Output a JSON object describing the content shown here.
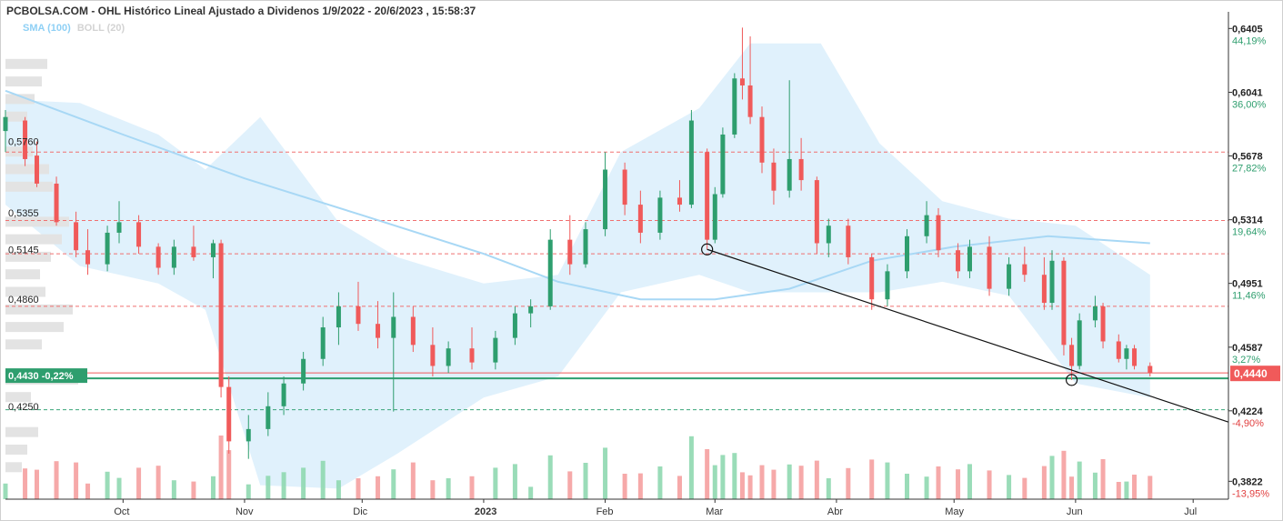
{
  "title": "PCBOLSA.COM - OHL Histórico Lineal Ajustado a Dividenos 1/9/2022 - 20/6/2023 , 15:58:37",
  "legend": {
    "sma": "SMA (100)",
    "boll": "BOLL (20)"
  },
  "colors": {
    "up": "#2e9e6e",
    "down": "#f05a5a",
    "sma": "#a8d8f5",
    "band": "#daeefb",
    "grid_red": "#f07070",
    "grid_green": "#3aa57a"
  },
  "chart_data": {
    "type": "candlestick",
    "x_range": [
      "2022-09-01",
      "2023-07-10"
    ],
    "y_range": [
      0.372,
      0.65
    ],
    "x_labels": [
      {
        "label": "Oct",
        "date": "2022-10-01"
      },
      {
        "label": "Nov",
        "date": "2022-11-01"
      },
      {
        "label": "Dic",
        "date": "2022-12-01"
      },
      {
        "label": "2023",
        "date": "2023-01-01"
      },
      {
        "label": "Feb",
        "date": "2023-02-01"
      },
      {
        "label": "Mar",
        "date": "2023-03-01"
      },
      {
        "label": "Abr",
        "date": "2023-04-01"
      },
      {
        "label": "May",
        "date": "2023-05-01"
      },
      {
        "label": "Jun",
        "date": "2023-06-01"
      },
      {
        "label": "Jul",
        "date": "2023-07-01"
      }
    ],
    "right_axis": [
      {
        "price": "0,6405",
        "pct": "44,19%",
        "v": 0.6405
      },
      {
        "price": "0,6041",
        "pct": "36,00%",
        "v": 0.6041
      },
      {
        "price": "0,5678",
        "pct": "27,82%",
        "v": 0.5678
      },
      {
        "price": "0,5314",
        "pct": "19,64%",
        "v": 0.5314
      },
      {
        "price": "0,4951",
        "pct": "11,46%",
        "v": 0.4951
      },
      {
        "price": "0,4587",
        "pct": "3,27%",
        "v": 0.4587
      },
      {
        "price": "0,4224",
        "pct": "-4,90%",
        "v": 0.4224
      },
      {
        "price": "0,3822",
        "pct": "-13,95%",
        "v": 0.3822
      }
    ],
    "left_levels": [
      {
        "label": "0,5760",
        "v": 0.576
      },
      {
        "label": "0,5355",
        "v": 0.5355
      },
      {
        "label": "0,5145",
        "v": 0.5145
      },
      {
        "label": "0,4860",
        "v": 0.486
      },
      {
        "label": "0,4250",
        "v": 0.425
      }
    ],
    "resistance_levels": [
      0.57,
      0.531,
      0.512,
      0.482,
      0.423
    ],
    "last_price": {
      "label": "0,4440",
      "v": 0.444
    },
    "ref_price": {
      "label": "0,4430 -0,22%",
      "v": 0.443
    },
    "trendline": {
      "from": {
        "date": "2023-02-27",
        "v": 0.5145
      },
      "to": {
        "date": "2023-07-10",
        "v": 0.416
      }
    },
    "markers": [
      {
        "date": "2023-02-27",
        "v": 0.5145
      },
      {
        "date": "2023-05-31",
        "v": 0.44
      }
    ],
    "candles": [
      {
        "d": "2022-09-01",
        "o": 0.582,
        "h": 0.594,
        "l": 0.57,
        "c": 0.59
      },
      {
        "d": "2022-09-06",
        "o": 0.588,
        "h": 0.59,
        "l": 0.562,
        "c": 0.566
      },
      {
        "d": "2022-09-09",
        "o": 0.568,
        "h": 0.576,
        "l": 0.55,
        "c": 0.552
      },
      {
        "d": "2022-09-14",
        "o": 0.552,
        "h": 0.556,
        "l": 0.528,
        "c": 0.53
      },
      {
        "d": "2022-09-19",
        "o": 0.53,
        "h": 0.536,
        "l": 0.51,
        "c": 0.514
      },
      {
        "d": "2022-09-22",
        "o": 0.514,
        "h": 0.526,
        "l": 0.5,
        "c": 0.506
      },
      {
        "d": "2022-09-27",
        "o": 0.506,
        "h": 0.528,
        "l": 0.502,
        "c": 0.524
      },
      {
        "d": "2022-09-30",
        "o": 0.524,
        "h": 0.542,
        "l": 0.518,
        "c": 0.53
      },
      {
        "d": "2022-10-05",
        "o": 0.53,
        "h": 0.534,
        "l": 0.512,
        "c": 0.516
      },
      {
        "d": "2022-10-10",
        "o": 0.516,
        "h": 0.518,
        "l": 0.5,
        "c": 0.504
      },
      {
        "d": "2022-10-14",
        "o": 0.504,
        "h": 0.52,
        "l": 0.5,
        "c": 0.516
      },
      {
        "d": "2022-10-19",
        "o": 0.516,
        "h": 0.528,
        "l": 0.508,
        "c": 0.51
      },
      {
        "d": "2022-10-24",
        "o": 0.51,
        "h": 0.52,
        "l": 0.498,
        "c": 0.518
      },
      {
        "d": "2022-10-26",
        "o": 0.518,
        "h": 0.52,
        "l": 0.43,
        "c": 0.436
      },
      {
        "d": "2022-10-28",
        "o": 0.436,
        "h": 0.442,
        "l": 0.398,
        "c": 0.405
      },
      {
        "d": "2022-11-02",
        "o": 0.405,
        "h": 0.42,
        "l": 0.395,
        "c": 0.412
      },
      {
        "d": "2022-11-07",
        "o": 0.412,
        "h": 0.433,
        "l": 0.408,
        "c": 0.425
      },
      {
        "d": "2022-11-11",
        "o": 0.425,
        "h": 0.442,
        "l": 0.42,
        "c": 0.438
      },
      {
        "d": "2022-11-16",
        "o": 0.438,
        "h": 0.456,
        "l": 0.434,
        "c": 0.452
      },
      {
        "d": "2022-11-21",
        "o": 0.452,
        "h": 0.476,
        "l": 0.448,
        "c": 0.47
      },
      {
        "d": "2022-11-25",
        "o": 0.47,
        "h": 0.49,
        "l": 0.46,
        "c": 0.482
      },
      {
        "d": "2022-11-30",
        "o": 0.482,
        "h": 0.496,
        "l": 0.468,
        "c": 0.472
      },
      {
        "d": "2022-12-05",
        "o": 0.472,
        "h": 0.485,
        "l": 0.458,
        "c": 0.464
      },
      {
        "d": "2022-12-09",
        "o": 0.464,
        "h": 0.49,
        "l": 0.422,
        "c": 0.476
      },
      {
        "d": "2022-12-14",
        "o": 0.476,
        "h": 0.482,
        "l": 0.456,
        "c": 0.46
      },
      {
        "d": "2022-12-19",
        "o": 0.46,
        "h": 0.47,
        "l": 0.442,
        "c": 0.448
      },
      {
        "d": "2022-12-23",
        "o": 0.448,
        "h": 0.462,
        "l": 0.444,
        "c": 0.458
      },
      {
        "d": "2022-12-29",
        "o": 0.458,
        "h": 0.47,
        "l": 0.446,
        "c": 0.45
      },
      {
        "d": "2023-01-04",
        "o": 0.45,
        "h": 0.468,
        "l": 0.446,
        "c": 0.464
      },
      {
        "d": "2023-01-09",
        "o": 0.464,
        "h": 0.482,
        "l": 0.46,
        "c": 0.478
      },
      {
        "d": "2023-01-13",
        "o": 0.478,
        "h": 0.486,
        "l": 0.47,
        "c": 0.482
      },
      {
        "d": "2023-01-18",
        "o": 0.482,
        "h": 0.526,
        "l": 0.48,
        "c": 0.52
      },
      {
        "d": "2023-01-23",
        "o": 0.52,
        "h": 0.534,
        "l": 0.5,
        "c": 0.506
      },
      {
        "d": "2023-01-27",
        "o": 0.506,
        "h": 0.53,
        "l": 0.504,
        "c": 0.526
      },
      {
        "d": "2023-02-01",
        "o": 0.526,
        "h": 0.57,
        "l": 0.522,
        "c": 0.56
      },
      {
        "d": "2023-02-06",
        "o": 0.56,
        "h": 0.564,
        "l": 0.534,
        "c": 0.54
      },
      {
        "d": "2023-02-10",
        "o": 0.54,
        "h": 0.548,
        "l": 0.518,
        "c": 0.524
      },
      {
        "d": "2023-02-15",
        "o": 0.524,
        "h": 0.548,
        "l": 0.52,
        "c": 0.544
      },
      {
        "d": "2023-02-20",
        "o": 0.544,
        "h": 0.554,
        "l": 0.536,
        "c": 0.54
      },
      {
        "d": "2023-02-23",
        "o": 0.54,
        "h": 0.594,
        "l": 0.538,
        "c": 0.588
      },
      {
        "d": "2023-02-27",
        "o": 0.57,
        "h": 0.572,
        "l": 0.5145,
        "c": 0.52
      },
      {
        "d": "2023-03-01",
        "o": 0.52,
        "h": 0.55,
        "l": 0.518,
        "c": 0.546
      },
      {
        "d": "2023-03-03",
        "o": 0.546,
        "h": 0.584,
        "l": 0.544,
        "c": 0.58
      },
      {
        "d": "2023-03-06",
        "o": 0.58,
        "h": 0.615,
        "l": 0.578,
        "c": 0.612
      },
      {
        "d": "2023-03-08",
        "o": 0.612,
        "h": 0.641,
        "l": 0.6,
        "c": 0.608
      },
      {
        "d": "2023-03-10",
        "o": 0.608,
        "h": 0.636,
        "l": 0.586,
        "c": 0.59
      },
      {
        "d": "2023-03-13",
        "o": 0.59,
        "h": 0.596,
        "l": 0.558,
        "c": 0.564
      },
      {
        "d": "2023-03-16",
        "o": 0.564,
        "h": 0.572,
        "l": 0.54,
        "c": 0.548
      },
      {
        "d": "2023-03-20",
        "o": 0.548,
        "h": 0.611,
        "l": 0.544,
        "c": 0.566
      },
      {
        "d": "2023-03-23",
        "o": 0.566,
        "h": 0.578,
        "l": 0.548,
        "c": 0.554
      },
      {
        "d": "2023-03-27",
        "o": 0.554,
        "h": 0.556,
        "l": 0.512,
        "c": 0.518
      },
      {
        "d": "2023-03-30",
        "o": 0.518,
        "h": 0.532,
        "l": 0.51,
        "c": 0.528
      },
      {
        "d": "2023-04-04",
        "o": 0.528,
        "h": 0.532,
        "l": 0.506,
        "c": 0.51
      },
      {
        "d": "2023-04-10",
        "o": 0.51,
        "h": 0.512,
        "l": 0.48,
        "c": 0.486
      },
      {
        "d": "2023-04-14",
        "o": 0.486,
        "h": 0.506,
        "l": 0.482,
        "c": 0.502
      },
      {
        "d": "2023-04-19",
        "o": 0.502,
        "h": 0.526,
        "l": 0.498,
        "c": 0.522
      },
      {
        "d": "2023-04-24",
        "o": 0.522,
        "h": 0.542,
        "l": 0.518,
        "c": 0.534
      },
      {
        "d": "2023-04-27",
        "o": 0.534,
        "h": 0.538,
        "l": 0.51,
        "c": 0.514
      },
      {
        "d": "2023-05-02",
        "o": 0.514,
        "h": 0.518,
        "l": 0.498,
        "c": 0.502
      },
      {
        "d": "2023-05-05",
        "o": 0.502,
        "h": 0.52,
        "l": 0.498,
        "c": 0.516
      },
      {
        "d": "2023-05-10",
        "o": 0.516,
        "h": 0.522,
        "l": 0.488,
        "c": 0.492
      },
      {
        "d": "2023-05-15",
        "o": 0.492,
        "h": 0.51,
        "l": 0.488,
        "c": 0.506
      },
      {
        "d": "2023-05-19",
        "o": 0.506,
        "h": 0.516,
        "l": 0.496,
        "c": 0.5
      },
      {
        "d": "2023-05-24",
        "o": 0.5,
        "h": 0.51,
        "l": 0.48,
        "c": 0.484
      },
      {
        "d": "2023-05-26",
        "o": 0.484,
        "h": 0.514,
        "l": 0.48,
        "c": 0.508
      },
      {
        "d": "2023-05-29",
        "o": 0.508,
        "h": 0.51,
        "l": 0.454,
        "c": 0.46
      },
      {
        "d": "2023-05-31",
        "o": 0.46,
        "h": 0.464,
        "l": 0.44,
        "c": 0.448
      },
      {
        "d": "2023-06-02",
        "o": 0.448,
        "h": 0.478,
        "l": 0.446,
        "c": 0.474
      },
      {
        "d": "2023-06-06",
        "o": 0.474,
        "h": 0.488,
        "l": 0.47,
        "c": 0.482
      },
      {
        "d": "2023-06-08",
        "o": 0.482,
        "h": 0.484,
        "l": 0.458,
        "c": 0.462
      },
      {
        "d": "2023-06-12",
        "o": 0.462,
        "h": 0.466,
        "l": 0.45,
        "c": 0.452
      },
      {
        "d": "2023-06-14",
        "o": 0.452,
        "h": 0.46,
        "l": 0.446,
        "c": 0.458
      },
      {
        "d": "2023-06-16",
        "o": 0.458,
        "h": 0.46,
        "l": 0.446,
        "c": 0.448
      },
      {
        "d": "2023-06-20",
        "o": 0.448,
        "h": 0.45,
        "l": 0.442,
        "c": 0.444
      }
    ],
    "sma100": [
      {
        "d": "2022-09-01",
        "v": 0.605
      },
      {
        "d": "2022-10-01",
        "v": 0.58
      },
      {
        "d": "2022-11-01",
        "v": 0.555
      },
      {
        "d": "2022-12-01",
        "v": 0.534
      },
      {
        "d": "2023-01-01",
        "v": 0.512
      },
      {
        "d": "2023-01-20",
        "v": 0.496
      },
      {
        "d": "2023-02-10",
        "v": 0.486
      },
      {
        "d": "2023-03-01",
        "v": 0.486
      },
      {
        "d": "2023-03-20",
        "v": 0.492
      },
      {
        "d": "2023-04-10",
        "v": 0.508
      },
      {
        "d": "2023-05-01",
        "v": 0.516
      },
      {
        "d": "2023-05-25",
        "v": 0.522
      },
      {
        "d": "2023-06-20",
        "v": 0.518
      }
    ],
    "bollinger": [
      {
        "d": "2022-09-01",
        "u": 0.6,
        "l": 0.54
      },
      {
        "d": "2022-09-20",
        "u": 0.598,
        "l": 0.505
      },
      {
        "d": "2022-10-10",
        "u": 0.58,
        "l": 0.495
      },
      {
        "d": "2022-10-22",
        "u": 0.56,
        "l": 0.48
      },
      {
        "d": "2022-11-05",
        "u": 0.59,
        "l": 0.38
      },
      {
        "d": "2022-11-25",
        "u": 0.53,
        "l": 0.378
      },
      {
        "d": "2022-12-10",
        "u": 0.51,
        "l": 0.398
      },
      {
        "d": "2023-01-01",
        "u": 0.495,
        "l": 0.43
      },
      {
        "d": "2023-01-20",
        "u": 0.5,
        "l": 0.442
      },
      {
        "d": "2023-02-05",
        "u": 0.57,
        "l": 0.49
      },
      {
        "d": "2023-02-25",
        "u": 0.595,
        "l": 0.5
      },
      {
        "d": "2023-03-10",
        "u": 0.632,
        "l": 0.49
      },
      {
        "d": "2023-03-28",
        "u": 0.632,
        "l": 0.49
      },
      {
        "d": "2023-04-12",
        "u": 0.575,
        "l": 0.49
      },
      {
        "d": "2023-04-28",
        "u": 0.542,
        "l": 0.496
      },
      {
        "d": "2023-05-15",
        "u": 0.532,
        "l": 0.488
      },
      {
        "d": "2023-06-01",
        "u": 0.528,
        "l": 0.438
      },
      {
        "d": "2023-06-20",
        "u": 0.5,
        "l": 0.43
      }
    ],
    "volume_profile": [
      {
        "v": 0.62,
        "w": 46
      },
      {
        "v": 0.61,
        "w": 40
      },
      {
        "v": 0.6,
        "w": 32
      },
      {
        "v": 0.59,
        "w": 24
      },
      {
        "v": 0.57,
        "w": 30
      },
      {
        "v": 0.56,
        "w": 48
      },
      {
        "v": 0.55,
        "w": 52
      },
      {
        "v": 0.53,
        "w": 70
      },
      {
        "v": 0.52,
        "w": 62
      },
      {
        "v": 0.51,
        "w": 50
      },
      {
        "v": 0.5,
        "w": 38
      },
      {
        "v": 0.49,
        "w": 44
      },
      {
        "v": 0.48,
        "w": 74
      },
      {
        "v": 0.47,
        "w": 64
      },
      {
        "v": 0.46,
        "w": 40
      },
      {
        "v": 0.44,
        "w": 80
      },
      {
        "v": 0.43,
        "w": 28
      },
      {
        "v": 0.41,
        "w": 36
      },
      {
        "v": 0.4,
        "w": 24
      },
      {
        "v": 0.39,
        "w": 18
      }
    ]
  }
}
